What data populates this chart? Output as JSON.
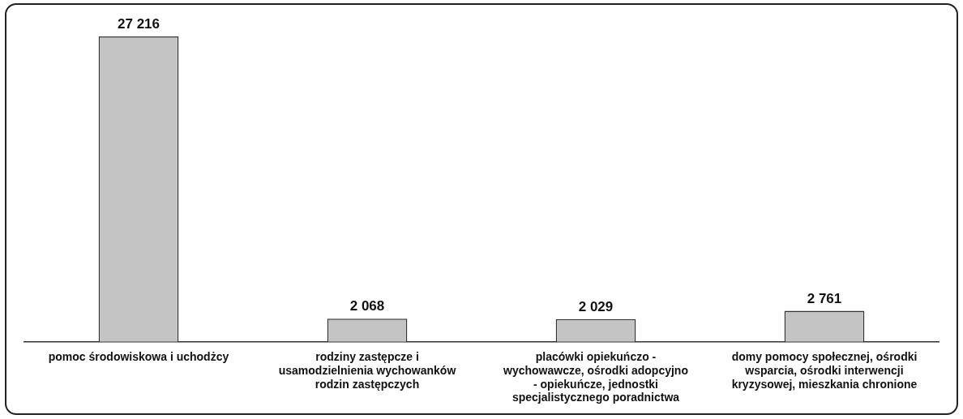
{
  "chart_data": {
    "type": "bar",
    "categories": [
      "pomoc środowiskowa i uchodżcy",
      "rodziny zastępcze i usamodzielnienia wychowanków rodzin zastępczych",
      "placówki opiekuńczo - wychowawcze, ośrodki adopcyjno - opiekuńcze, jednostki specjalistycznego poradnictwa",
      "domy pomocy społecznej, ośrodki wsparcia, ośrodki interwencji kryzysowej, mieszkania chronione"
    ],
    "values": [
      27216,
      2068,
      2029,
      2761
    ],
    "value_labels": [
      "27 216",
      "2 068",
      "2 029",
      "2 761"
    ],
    "color": "#c4c4c4",
    "tick_labels": "x",
    "grid": false,
    "legend": false
  }
}
